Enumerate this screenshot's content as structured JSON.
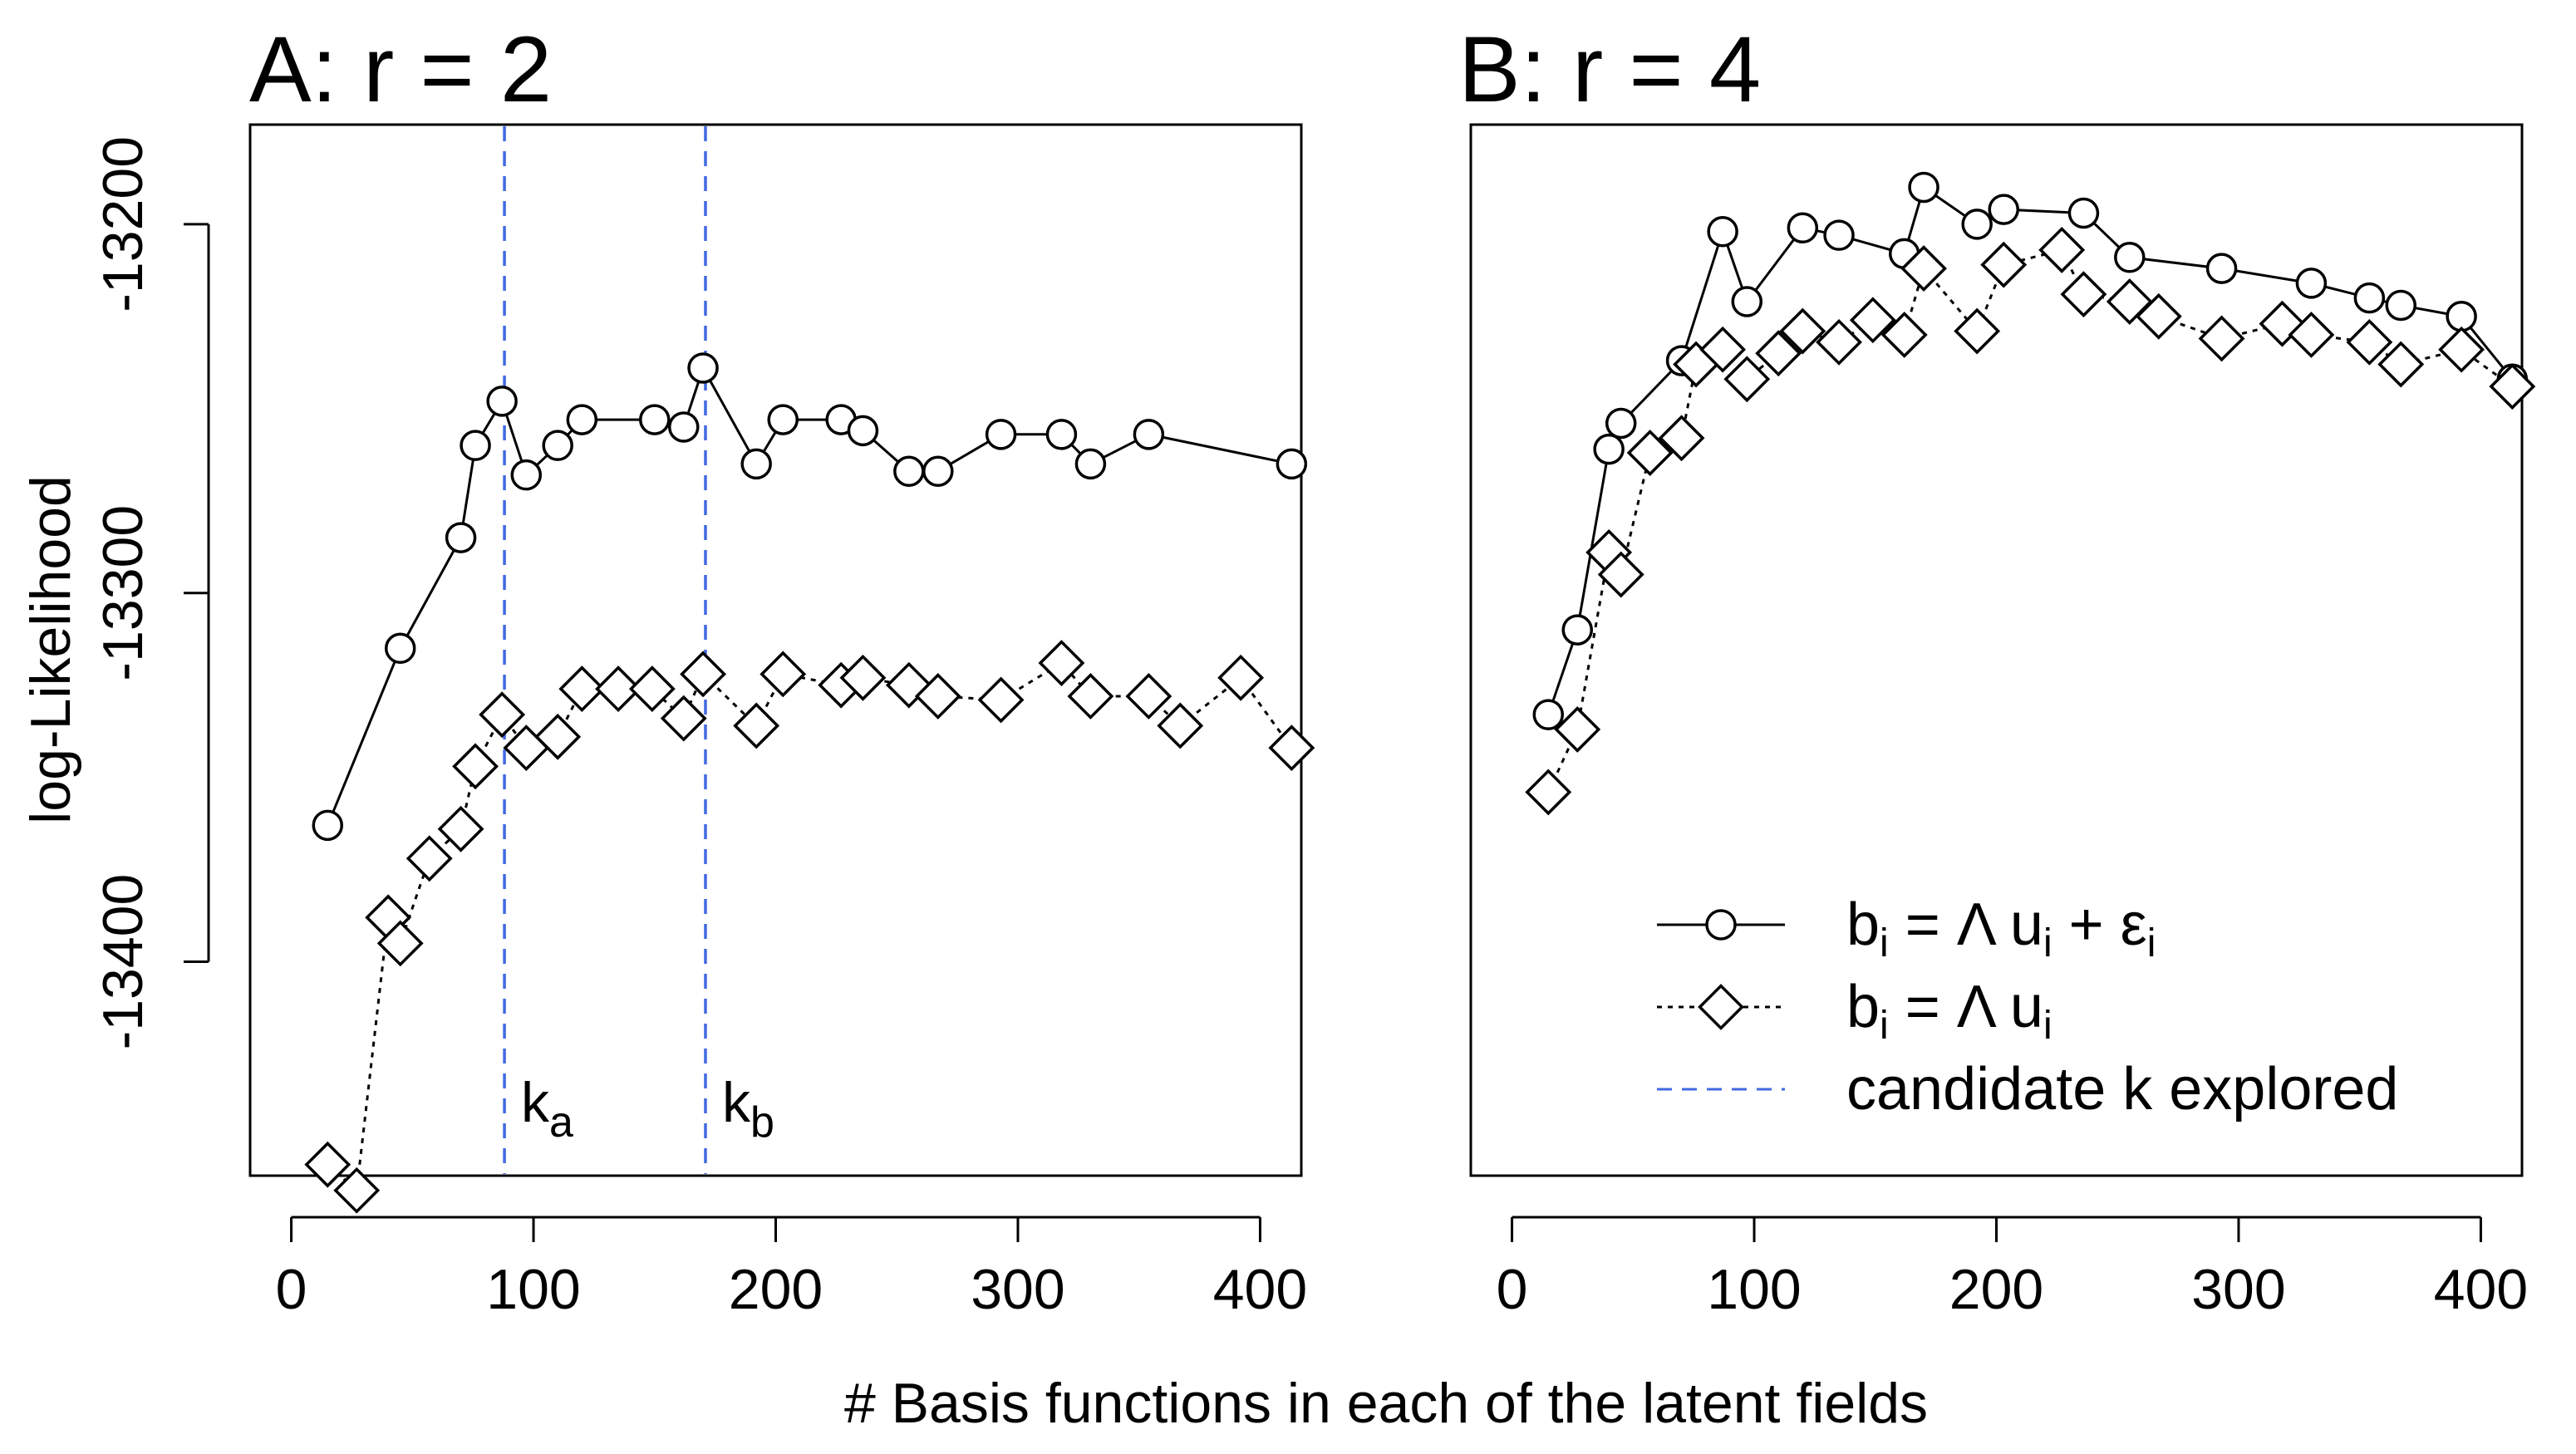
{
  "figure": {
    "xlabel": "# Basis functions in each of the latent fields",
    "ylabel": "log-Likelihood"
  },
  "legend": {
    "placement": "bottom-right of panel B",
    "entries": [
      {
        "key": "with_error",
        "base": "b",
        "sub": "i",
        "mid": " = Λ u",
        "sub2": "i",
        "tail": " + ε",
        "sub3": "i"
      },
      {
        "key": "no_error",
        "base": "b",
        "sub": "i",
        "mid": " = Λ u",
        "sub2": "i"
      },
      {
        "key": "candidate",
        "text": "candidate k explored"
      }
    ]
  },
  "chart_data": [
    {
      "type": "line",
      "panel": "A",
      "title_prefix": "A: r",
      "title_eq": "=",
      "title_value": "2",
      "xlim": [
        -17,
        417
      ],
      "ylim": [
        -13458,
        -13173
      ],
      "x_ticks": [
        0,
        100,
        200,
        300,
        400
      ],
      "x_tick_labels": [
        "0",
        "100",
        "200",
        "300",
        "400"
      ],
      "y_ticks": [
        -13200,
        -13300,
        -13400
      ],
      "y_tick_labels": [
        "-13200",
        "-13300",
        "-13400"
      ],
      "grid": false,
      "series": [
        {
          "key": "with_error",
          "marker": "circle",
          "line": "solid",
          "color": "#000000",
          "x": [
            15,
            45,
            70,
            76,
            87,
            97,
            110,
            120,
            150,
            162,
            170,
            192,
            203,
            227,
            236,
            255,
            267,
            293,
            318,
            330,
            354,
            413
          ],
          "values": [
            -13363,
            -13315,
            -13285,
            -13260,
            -13248,
            -13268,
            -13260,
            -13253,
            -13253,
            -13255,
            -13239,
            -13265,
            -13253,
            -13253,
            -13256,
            -13267,
            -13267,
            -13257,
            -13257,
            -13265,
            -13257,
            -13265
          ]
        },
        {
          "key": "no_error",
          "marker": "diamond",
          "line": "dotted",
          "color": "#000000",
          "x": [
            15,
            27,
            40,
            45,
            57,
            70,
            76,
            87,
            97,
            110,
            120,
            135,
            149,
            162,
            170,
            192,
            203,
            227,
            236,
            255,
            267,
            293,
            318,
            330,
            354,
            367,
            392,
            413
          ],
          "values": [
            -13455,
            -13462,
            -13388,
            -13395,
            -13372,
            -13364,
            -13347,
            -13333,
            -13342,
            -13339,
            -13326,
            -13326,
            -13326,
            -13334,
            -13322,
            -13336,
            -13322,
            -13325,
            -13323,
            -13325,
            -13328,
            -13329,
            -13319,
            -13328,
            -13328,
            -13336,
            -13323,
            -13342
          ]
        }
      ],
      "reference_lines": [
        {
          "x": 88,
          "label": "k",
          "label_sub": "a",
          "color": "#4169E1",
          "style": "dashed"
        },
        {
          "x": 171,
          "label": "k",
          "label_sub": "b",
          "color": "#4169E1",
          "style": "dashed"
        }
      ]
    },
    {
      "type": "line",
      "panel": "B",
      "title_prefix": "B: r",
      "title_eq": "=",
      "title_value": "4",
      "xlim": [
        -17,
        417
      ],
      "ylim": [
        -13458,
        -13173
      ],
      "x_ticks": [
        0,
        100,
        200,
        300,
        400
      ],
      "x_tick_labels": [
        "0",
        "100",
        "200",
        "300",
        "400"
      ],
      "grid": false,
      "series": [
        {
          "key": "with_error",
          "marker": "circle",
          "line": "solid",
          "color": "#000000",
          "x": [
            15,
            27,
            40,
            45,
            70,
            87,
            97,
            120,
            135,
            162,
            170,
            192,
            203,
            236,
            255,
            293,
            330,
            354,
            367,
            392,
            413
          ],
          "values": [
            -13333,
            -13310,
            -13261,
            -13254,
            -13237,
            -13202,
            -13221,
            -13201,
            -13203,
            -13208,
            -13190,
            -13200,
            -13196,
            -13197,
            -13209,
            -13212,
            -13216,
            -13220,
            -13222,
            -13225,
            -13242
          ]
        },
        {
          "key": "no_error",
          "marker": "diamond",
          "line": "dotted",
          "color": "#000000",
          "x": [
            15,
            27,
            40,
            45,
            57,
            70,
            76,
            87,
            97,
            110,
            120,
            135,
            149,
            162,
            170,
            192,
            203,
            227,
            236,
            255,
            267,
            293,
            318,
            330,
            354,
            367,
            392,
            413
          ],
          "values": [
            -13354,
            -13337,
            -13289,
            -13295,
            -13262,
            -13258,
            -13238,
            -13234,
            -13242,
            -13235,
            -13229,
            -13232,
            -13226,
            -13230,
            -13212,
            -13229,
            -13211,
            -13207,
            -13219,
            -13221,
            -13225,
            -13231,
            -13227,
            -13230,
            -13232,
            -13238,
            -13234,
            -13244
          ]
        }
      ]
    }
  ]
}
